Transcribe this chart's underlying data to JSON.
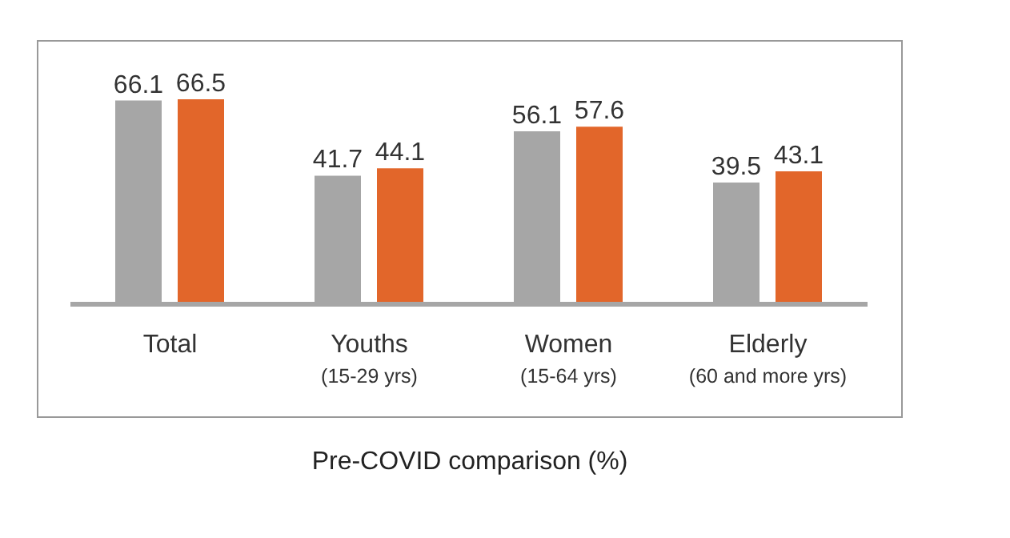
{
  "chart_data": {
    "type": "bar",
    "xlabel": "Pre-COVID comparison (%)",
    "categories": [
      "Total",
      "Youths\n(15-29 yrs)",
      "Women\n(15-64 yrs)",
      "Elderly\n(60 and more yrs)"
    ],
    "series": [
      {
        "color": "#a6a6a6",
        "values": [
          66.1,
          41.7,
          56.1,
          39.5
        ]
      },
      {
        "color": "#e2662a",
        "values": [
          66.5,
          44.1,
          57.6,
          43.1
        ]
      }
    ],
    "data_labels": true,
    "tick_labels": "x",
    "grid": false,
    "legend": false
  }
}
